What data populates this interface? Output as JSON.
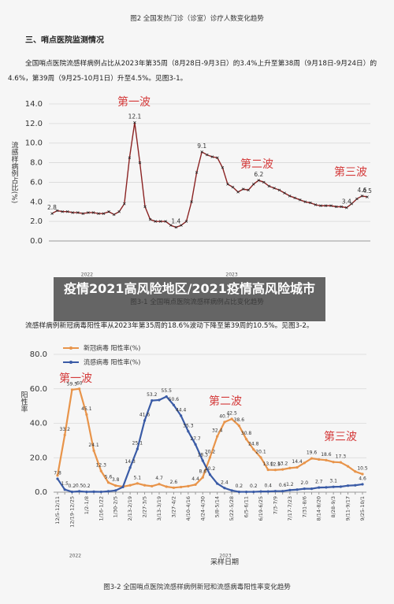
{
  "header": {
    "caption": "图2 全国发热门诊（诊室）诊疗人数变化趋势",
    "heading": "三、哨点医院监测情况"
  },
  "paragraphs": [
    "全国哨点医院流感样病例占比从2023年第35周（8月28日-9月3日）的3.4%上升至第38周（9月18日-9月24日）的4.6%，第39周（9月25-10月1日）升至4.5%。见图3-1。",
    "流感样病例新冠病毒阳性率从2023年第35周的18.6%波动下降至第39周的10.5%。见图3-2。"
  ],
  "banner": "疫情2021高风险地区/2021疫情高风险城市",
  "captions": [
    "图3-1 全国哨点医院流感样病例占比变化趋势",
    "图3-2 全国哨点医院流感样病例新冠和流感病毒阳性率变化趋势"
  ],
  "chart_data": [
    {
      "type": "line",
      "y_label": "流感样病例占比(%)",
      "color": "#8b2323",
      "values": [
        2.8,
        3.1,
        3.0,
        3.0,
        2.9,
        2.9,
        2.8,
        2.9,
        2.9,
        2.8,
        2.8,
        3.0,
        2.7,
        3.0,
        3.8,
        8.5,
        12.1,
        8.0,
        3.5,
        2.2,
        2.0,
        2.0,
        2.0,
        1.6,
        1.4,
        1.6,
        2.0,
        4.0,
        7.0,
        9.1,
        8.8,
        8.6,
        8.5,
        7.5,
        5.8,
        5.5,
        5.0,
        5.3,
        5.2,
        5.8,
        6.2,
        6.0,
        5.6,
        5.4,
        5.2,
        4.9,
        4.6,
        4.4,
        4.2,
        4.0,
        3.9,
        3.7,
        3.6,
        3.6,
        3.6,
        3.5,
        3.5,
        3.4,
        3.8,
        4.3,
        4.6,
        4.5
      ],
      "value_labels": [
        "2.8",
        null,
        null,
        null,
        null,
        null,
        null,
        null,
        null,
        null,
        null,
        null,
        null,
        null,
        null,
        null,
        "12.1",
        null,
        null,
        null,
        null,
        null,
        null,
        null,
        "1.4",
        null,
        null,
        null,
        null,
        "9.1",
        null,
        null,
        null,
        null,
        null,
        null,
        null,
        null,
        null,
        null,
        "6.2",
        null,
        null,
        null,
        null,
        null,
        null,
        null,
        null,
        null,
        null,
        null,
        null,
        null,
        null,
        null,
        null,
        "3.4",
        null,
        null,
        "4.6",
        "4.5"
      ],
      "ylim": [
        0,
        14
      ],
      "yticks": [
        {
          "value": 0,
          "label": "0.0"
        },
        {
          "value": 2,
          "label": "2.0"
        },
        {
          "value": 4,
          "label": "4.0"
        },
        {
          "value": 6,
          "label": "6.0"
        },
        {
          "value": 8,
          "label": "8.0"
        },
        {
          "value": 10,
          "label": "10.0"
        },
        {
          "value": 12,
          "label": "12.0"
        },
        {
          "value": 14,
          "label": "14.0"
        }
      ],
      "grid": true,
      "year_labels": [
        "2022",
        "2023"
      ],
      "annotations": [
        "第一波",
        "第二波",
        "第三波"
      ]
    },
    {
      "type": "line",
      "y_label": "阳性率",
      "x_label": "采样日期",
      "legend": "top-left",
      "grid": true,
      "categories": [
        "12/5-12/11",
        null,
        "12/19-12/25",
        null,
        "1/2-1/8",
        null,
        "1/16-1/22",
        null,
        "1/30-2/5",
        null,
        "2/13-2/19",
        null,
        "2/27-3/5",
        null,
        "3/13-3/19",
        null,
        "3/27-4/2",
        null,
        "4/10-4/16",
        null,
        "4/24-4/30",
        null,
        "5/8-5/14",
        null,
        "5/22-5/28",
        null,
        "6/5-6/11",
        null,
        "6/19-6/25",
        null,
        "7/3-7/9",
        null,
        "7/17-7/23",
        null,
        "7/31-8/6",
        null,
        "8/14-8/20",
        null,
        "8/28-9/3",
        null,
        "9/11-9/17",
        null,
        "9/25-10/1"
      ],
      "series": [
        {
          "name": "新冠病毒 阳性率(%)",
          "color": "#e8944a",
          "values": [
            9.7,
            33.2,
            59.5,
            60,
            45.1,
            24.1,
            12.3,
            5.6,
            3.8,
            3.2,
            4.0,
            5.1,
            4.0,
            3.5,
            4.7,
            3.2,
            2.6,
            3.0,
            3.5,
            4.4,
            8.6,
            20.2,
            32.4,
            40.7,
            42.5,
            38.6,
            30.8,
            24.8,
            20.1,
            13.0,
            12.9,
            13.2,
            14.0,
            14.4,
            17.0,
            19.6,
            19.0,
            18.6,
            17.5,
            17.3,
            15.0,
            12.0,
            10.5
          ],
          "value_labels": [
            null,
            "33.2",
            "59.5",
            "60",
            "45.1",
            "24.1",
            "12.3",
            "5.6",
            "3.8",
            null,
            null,
            "5.1",
            null,
            null,
            "4.7",
            null,
            "2.6",
            null,
            null,
            "4.4",
            "8.6",
            "20.2",
            "32.4",
            "40.7",
            "42.5",
            "38.6",
            "30.8",
            "24.8",
            "20.1",
            "13.0",
            "12.9",
            "13.2",
            null,
            "14.4",
            null,
            "19.6",
            null,
            "18.6",
            null,
            "17.3",
            null,
            null,
            "10.5"
          ]
        },
        {
          "name": "流感病毒 阳性率(%)",
          "color": "#3a5ba6",
          "values": [
            7.8,
            1.5,
            0.2,
            0.5,
            0.2,
            0.3,
            0.2,
            0.5,
            1.0,
            3.0,
            14.3,
            25.1,
            41.6,
            53.2,
            53.5,
            55.5,
            50.6,
            44.4,
            35.3,
            27.7,
            18.3,
            10.2,
            5.0,
            2.4,
            1.0,
            0.2,
            0.2,
            0.2,
            0.4,
            0.4,
            0.6,
            0.6,
            1.2,
            1.5,
            2.0,
            2.0,
            2.7,
            2.8,
            3.1,
            3.2,
            3.8,
            4.0,
            4.6
          ],
          "value_labels": [
            "7.8",
            "1.5",
            "0.2",
            "0.5",
            "0.2",
            null,
            null,
            null,
            null,
            null,
            "14.3",
            "25.1",
            "41.6",
            "53.2",
            null,
            "55.5",
            "50.6",
            "44.4",
            "35.3",
            "27.7",
            "18.3",
            "10.2",
            null,
            "2.4",
            null,
            "0.2",
            null,
            "0.2",
            null,
            "0.4",
            null,
            "0.6",
            "1.2",
            null,
            "2.0",
            null,
            "2.7",
            null,
            "3.1",
            null,
            null,
            null,
            "4.6"
          ]
        }
      ],
      "ylim": [
        0,
        80
      ],
      "yticks": [
        {
          "value": 0,
          "label": "0.0"
        },
        {
          "value": 20,
          "label": "20.0"
        },
        {
          "value": 40,
          "label": "40.0"
        },
        {
          "value": 60,
          "label": "60.0"
        },
        {
          "value": 80,
          "label": "80.0"
        }
      ],
      "year_labels": [
        "2022",
        "2023"
      ],
      "annotations": [
        "第一波",
        "第二波",
        "第三波"
      ]
    }
  ]
}
